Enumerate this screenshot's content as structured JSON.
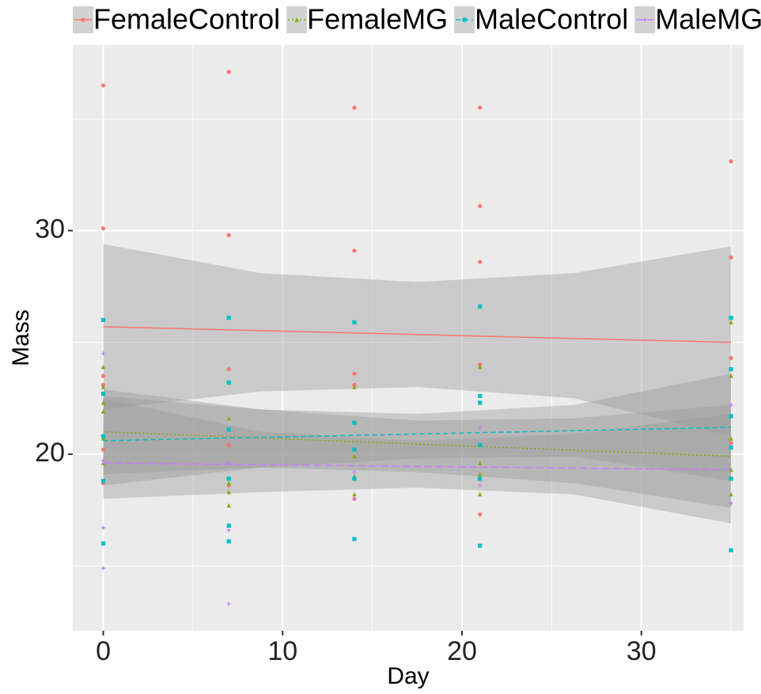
{
  "chart_data": {
    "type": "scatter",
    "x_label": "Day",
    "y_label": "Mass",
    "xlim": [
      -1.7,
      35.7
    ],
    "ylim": [
      12.1,
      38.3
    ],
    "xticks": [
      0,
      10,
      20,
      30
    ],
    "yticks": [
      20,
      30
    ],
    "x_minor_ticks": [
      5,
      15,
      25,
      35
    ],
    "y_minor_ticks": [
      15,
      25,
      35
    ],
    "grid": true,
    "legend_position": "top",
    "series": [
      {
        "name": "FemaleControl",
        "color": "#F8766D",
        "shape": "circle",
        "linetype": "solid",
        "x": [
          0,
          0,
          0,
          0,
          0,
          0,
          7,
          7,
          7,
          7,
          7,
          14,
          14,
          14,
          14,
          14,
          21,
          21,
          21,
          21,
          21,
          35,
          35,
          35,
          35,
          35
        ],
        "values": [
          36.5,
          30.1,
          23.5,
          23.1,
          20.2,
          18.7,
          37.1,
          29.8,
          23.8,
          20.4,
          18.6,
          35.5,
          29.1,
          23.6,
          23.1,
          18.0,
          35.5,
          31.1,
          28.6,
          24.0,
          17.3,
          33.1,
          28.8,
          24.3,
          20.5,
          18.9
        ],
        "fit": {
          "x": [
            0,
            35
          ],
          "values": [
            25.7,
            25.0
          ]
        },
        "ci": {
          "x": [
            0,
            8.75,
            17.5,
            26.25,
            35
          ],
          "upper": [
            29.4,
            28.1,
            27.7,
            28.1,
            29.3
          ],
          "lower": [
            22.0,
            22.8,
            23.0,
            22.5,
            20.8
          ]
        }
      },
      {
        "name": "FemaleMG",
        "color": "#7CAE00",
        "shape": "triangle",
        "linetype": "dotted",
        "x": [
          0,
          0,
          0,
          0,
          0,
          0,
          7,
          7,
          7,
          7,
          14,
          14,
          14,
          14,
          21,
          21,
          21,
          21,
          35,
          35,
          35,
          35,
          35
        ],
        "values": [
          23.9,
          23.0,
          22.3,
          21.9,
          20.7,
          19.6,
          21.6,
          18.7,
          17.7,
          18.3,
          23.0,
          19.9,
          19.0,
          18.2,
          23.9,
          19.6,
          19.1,
          18.2,
          25.9,
          23.5,
          20.7,
          19.3,
          18.2
        ],
        "fit": {
          "x": [
            0,
            35
          ],
          "values": [
            21.0,
            19.9
          ]
        },
        "ci": {
          "x": [
            0,
            8.75,
            17.5,
            26.25,
            35
          ],
          "upper": [
            22.9,
            22.0,
            21.5,
            21.6,
            22.2
          ],
          "lower": [
            19.1,
            19.4,
            19.2,
            18.7,
            17.6
          ]
        }
      },
      {
        "name": "MaleControl",
        "color": "#00BFC4",
        "shape": "square",
        "linetype": "dashed",
        "x": [
          0,
          0,
          0,
          0,
          0,
          7,
          7,
          7,
          7,
          7,
          7,
          14,
          14,
          14,
          14,
          14,
          21,
          21,
          21,
          21,
          21,
          21,
          35,
          35,
          35,
          35,
          35,
          35
        ],
        "values": [
          26.0,
          22.7,
          20.8,
          18.8,
          16.0,
          26.1,
          23.2,
          21.1,
          18.9,
          16.8,
          16.1,
          25.9,
          21.4,
          20.2,
          18.9,
          16.2,
          26.6,
          22.6,
          22.3,
          20.4,
          18.9,
          15.9,
          26.1,
          23.8,
          21.7,
          20.3,
          18.9,
          15.7
        ],
        "fit": {
          "x": [
            0,
            35
          ],
          "values": [
            20.6,
            21.2
          ]
        },
        "ci": {
          "x": [
            0,
            8.75,
            17.5,
            26.25,
            35
          ],
          "upper": [
            22.6,
            22.0,
            21.8,
            22.2,
            23.6
          ],
          "lower": [
            18.6,
            19.4,
            19.8,
            19.9,
            18.8
          ]
        }
      },
      {
        "name": "MaleMG",
        "color": "#C77CFF",
        "shape": "plus",
        "linetype": "longdash",
        "x": [
          0,
          0,
          0,
          0,
          7,
          7,
          7,
          14,
          14,
          21,
          21,
          35,
          35
        ],
        "values": [
          24.5,
          19.7,
          16.7,
          14.9,
          19.6,
          16.6,
          13.3,
          19.2,
          18.0,
          21.2,
          18.6,
          22.2,
          17.8
        ],
        "fit": {
          "x": [
            0,
            35
          ],
          "values": [
            19.6,
            19.3
          ]
        },
        "ci": {
          "x": [
            0,
            8.75,
            17.5,
            26.25,
            35
          ],
          "upper": [
            22.5,
            21.0,
            20.6,
            20.9,
            21.8
          ],
          "lower": [
            18.0,
            18.3,
            18.5,
            18.2,
            16.9
          ]
        }
      }
    ]
  }
}
